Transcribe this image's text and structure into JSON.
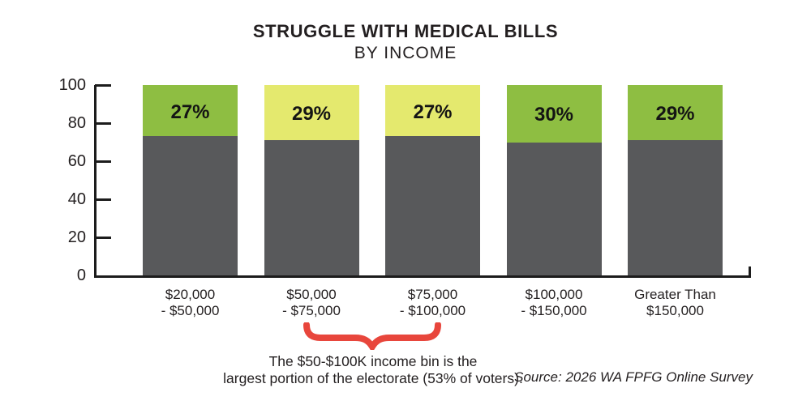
{
  "chart_data": {
    "type": "bar",
    "stacked": true,
    "title": "STRUGGLE WITH MEDICAL BILLS",
    "subtitle": "BY INCOME",
    "ylim": [
      0,
      100
    ],
    "yticks": [
      0,
      20,
      40,
      60,
      80,
      100
    ],
    "grid": false,
    "legend": "none",
    "base_color": "#58595B",
    "value_suffix": "%",
    "bars": [
      {
        "category": [
          "$20,000",
          "- $50,000"
        ],
        "top_value": 27,
        "base_value": 73,
        "top_color": "#8EBE42"
      },
      {
        "category": [
          "$50,000",
          "- $75,000"
        ],
        "top_value": 29,
        "base_value": 71,
        "top_color": "#E4E96E"
      },
      {
        "category": [
          "$75,000",
          "- $100,000"
        ],
        "top_value": 27,
        "base_value": 73,
        "top_color": "#E4E96E"
      },
      {
        "category": [
          "$100,000",
          "- $150,000"
        ],
        "top_value": 30,
        "base_value": 70,
        "top_color": "#8EBE42"
      },
      {
        "category": [
          "Greater Than",
          "$150,000"
        ],
        "top_value": 29,
        "base_value": 71,
        "top_color": "#8EBE42"
      }
    ]
  },
  "annotation": {
    "line1": "The $50-$100K income bin is the",
    "line2": "largest portion of the electorate (53% of voters).",
    "brace_color": "#E8463C"
  },
  "source": "Source: 2026 WA FPFG Online Survey",
  "colors": {
    "text": "#231F20",
    "axis": "#1c1c1c",
    "gray_segment": "#58595B",
    "green_segment": "#8EBE42",
    "yellow_segment": "#E4E96E",
    "brace_red": "#E8463C"
  }
}
